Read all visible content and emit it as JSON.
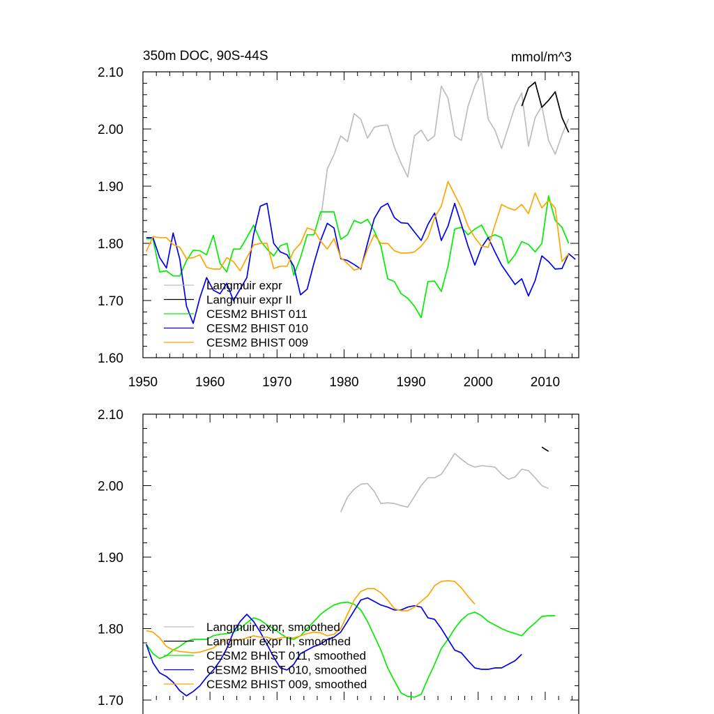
{
  "colors": {
    "langmuir": "#bdbdbd",
    "langmuir2": "#000000",
    "bhist011": "#00ee00",
    "bhist010": "#0000ee",
    "bhist009": "#ffa500"
  },
  "chart_data": [
    {
      "type": "line",
      "title_left": "350m DOC, 90S-44S",
      "title_right": "mmol/m^3",
      "xlim": [
        1950,
        2015
      ],
      "ylim": [
        1.6,
        2.1
      ],
      "xticks": [
        "1950",
        "1960",
        "1970",
        "1980",
        "1990",
        "2000",
        "2010"
      ],
      "yticks": [
        "1.60",
        "1.70",
        "1.80",
        "1.90",
        "2.00",
        "2.10"
      ],
      "legend_position": "lower-left",
      "series": [
        {
          "name": "Langmuir expr",
          "color_key": "langmuir",
          "x_start": 1976.5,
          "values": [
            1.84,
            1.93,
            1.955,
            1.988,
            1.978,
            2.027,
            2.017,
            1.984,
            2.003,
            2.006,
            2.007,
            1.968,
            1.94,
            1.916,
            1.988,
            1.998,
            1.979,
            1.988,
            2.075,
            2.054,
            1.988,
            1.98,
            2.04,
            2.075,
            2.099,
            2.017,
            1.998,
            1.966,
            2.003,
            2.04,
            2.063,
            1.97,
            2.02,
            2.04,
            1.98,
            1.956,
            1.99,
            2.018
          ]
        },
        {
          "name": "Langmuir expr II",
          "color_key": "langmuir2",
          "x_start": 2006.5,
          "values": [
            2.04,
            2.072,
            2.082,
            2.038,
            2.05,
            2.065,
            2.02,
            1.994
          ]
        },
        {
          "name": "CESM2 BHIST 011",
          "color_key": "bhist011",
          "x_start": 1950.5,
          "values": [
            1.808,
            1.808,
            1.75,
            1.752,
            1.743,
            1.743,
            1.77,
            1.788,
            1.787,
            1.78,
            1.814,
            1.765,
            1.75,
            1.79,
            1.79,
            1.81,
            1.832,
            1.805,
            1.79,
            1.778,
            1.796,
            1.8,
            1.744,
            1.775,
            1.815,
            1.815,
            1.855,
            1.855,
            1.855,
            1.807,
            1.815,
            1.84,
            1.835,
            1.842,
            1.822,
            1.795,
            1.738,
            1.733,
            1.712,
            1.704,
            1.69,
            1.67,
            1.733,
            1.734,
            1.716,
            1.76,
            1.825,
            1.828,
            1.815,
            1.825,
            1.832,
            1.81,
            1.815,
            1.81,
            1.765,
            1.78,
            1.803,
            1.798,
            1.785,
            1.8,
            1.883,
            1.84,
            1.828,
            1.8
          ]
        },
        {
          "name": "CESM2 BHIST 010",
          "color_key": "bhist010",
          "x_start": 1950.5,
          "values": [
            1.81,
            1.81,
            1.775,
            1.757,
            1.818,
            1.772,
            1.69,
            1.66,
            1.705,
            1.74,
            1.718,
            1.712,
            1.73,
            1.7,
            1.72,
            1.74,
            1.815,
            1.865,
            1.87,
            1.8,
            1.785,
            1.78,
            1.76,
            1.71,
            1.72,
            1.765,
            1.805,
            1.835,
            1.827,
            1.773,
            1.77,
            1.763,
            1.755,
            1.8,
            1.843,
            1.863,
            1.87,
            1.845,
            1.836,
            1.835,
            1.82,
            1.805,
            1.833,
            1.853,
            1.805,
            1.83,
            1.87,
            1.833,
            1.795,
            1.762,
            1.793,
            1.81,
            1.785,
            1.762,
            1.745,
            1.728,
            1.738,
            1.708,
            1.735,
            1.778,
            1.768,
            1.755,
            1.756,
            1.782,
            1.772
          ]
        },
        {
          "name": "CESM2 BHIST 009",
          "color_key": "bhist009",
          "x_start": 1950.5,
          "values": [
            1.786,
            1.812,
            1.81,
            1.81,
            1.798,
            1.793,
            1.773,
            1.775,
            1.78,
            1.758,
            1.755,
            1.755,
            1.775,
            1.768,
            1.752,
            1.775,
            1.797,
            1.8,
            1.8,
            1.756,
            1.76,
            1.76,
            1.787,
            1.8,
            1.827,
            1.823,
            1.804,
            1.79,
            1.808,
            1.775,
            1.765,
            1.753,
            1.757,
            1.79,
            1.815,
            1.8,
            1.8,
            1.787,
            1.783,
            1.783,
            1.785,
            1.795,
            1.81,
            1.845,
            1.865,
            1.908,
            1.885,
            1.862,
            1.83,
            1.81,
            1.795,
            1.793,
            1.832,
            1.868,
            1.862,
            1.858,
            1.868,
            1.852,
            1.888,
            1.862,
            1.875,
            1.862,
            1.768,
            1.782
          ]
        }
      ]
    },
    {
      "type": "line",
      "xlim": [
        1950,
        2015
      ],
      "ylim": [
        1.7,
        2.1
      ],
      "yticks": [
        "1.70",
        "1.80",
        "1.90",
        "2.00",
        "2.10"
      ],
      "legend_position": "lower-left",
      "series": [
        {
          "name": "Langmuir expr, smoothed",
          "color_key": "langmuir",
          "x_start": 1979.5,
          "values": [
            1.963,
            1.984,
            1.995,
            2.002,
            2.003,
            1.992,
            1.975,
            1.976,
            1.975,
            1.972,
            1.97,
            1.985,
            2.0,
            2.011,
            2.011,
            2.016,
            2.03,
            2.045,
            2.037,
            2.03,
            2.026,
            2.028,
            2.027,
            2.026,
            2.016,
            2.009,
            2.012,
            2.023,
            2.021,
            2.011,
            2.0,
            1.996
          ]
        },
        {
          "name": "Langmuir expr II, smoothed",
          "color_key": "langmuir2",
          "x_start": 2009.5,
          "values": [
            2.054,
            2.048
          ]
        },
        {
          "name": "CESM2 BHIST 011, smoothed",
          "color_key": "bhist011",
          "x_start": 1950.5,
          "values": [
            1.778,
            1.765,
            1.758,
            1.762,
            1.77,
            1.775,
            1.782,
            1.785,
            1.785,
            1.785,
            1.79,
            1.792,
            1.793,
            1.795,
            1.8,
            1.808,
            1.815,
            1.812,
            1.805,
            1.8,
            1.793,
            1.787,
            1.785,
            1.79,
            1.8,
            1.81,
            1.82,
            1.827,
            1.833,
            1.836,
            1.837,
            1.834,
            1.826,
            1.81,
            1.79,
            1.77,
            1.745,
            1.727,
            1.71,
            1.705,
            1.704,
            1.708,
            1.73,
            1.75,
            1.772,
            1.785,
            1.8,
            1.812,
            1.82,
            1.823,
            1.818,
            1.81,
            1.805,
            1.8,
            1.796,
            1.793,
            1.79,
            1.8,
            1.808,
            1.817,
            1.818,
            1.818
          ]
        },
        {
          "name": "CESM2 BHIST 010, smoothed",
          "color_key": "bhist010",
          "x_start": 1950.5,
          "values": [
            1.778,
            1.752,
            1.738,
            1.733,
            1.725,
            1.713,
            1.706,
            1.712,
            1.72,
            1.732,
            1.742,
            1.755,
            1.772,
            1.795,
            1.81,
            1.82,
            1.81,
            1.795,
            1.778,
            1.76,
            1.745,
            1.742,
            1.75,
            1.765,
            1.77,
            1.775,
            1.778,
            1.785,
            1.788,
            1.795,
            1.81,
            1.825,
            1.84,
            1.843,
            1.838,
            1.833,
            1.83,
            1.826,
            1.826,
            1.83,
            1.832,
            1.83,
            1.815,
            1.813,
            1.8,
            1.785,
            1.77,
            1.766,
            1.755,
            1.745,
            1.743,
            1.743,
            1.745,
            1.745,
            1.75,
            1.755,
            1.764
          ]
        },
        {
          "name": "CESM2 BHIST 009, smoothed",
          "color_key": "bhist009",
          "x_start": 1950.5,
          "values": [
            1.797,
            1.795,
            1.787,
            1.775,
            1.77,
            1.768,
            1.767,
            1.766,
            1.767,
            1.77,
            1.773,
            1.78,
            1.785,
            1.784,
            1.784,
            1.787,
            1.79,
            1.788,
            1.788,
            1.785,
            1.787,
            1.788,
            1.787,
            1.79,
            1.793,
            1.795,
            1.794,
            1.79,
            1.792,
            1.8,
            1.82,
            1.84,
            1.852,
            1.856,
            1.856,
            1.85,
            1.84,
            1.828,
            1.825,
            1.825,
            1.83,
            1.838,
            1.846,
            1.86,
            1.866,
            1.867,
            1.866,
            1.857,
            1.845,
            1.834
          ]
        }
      ]
    }
  ]
}
